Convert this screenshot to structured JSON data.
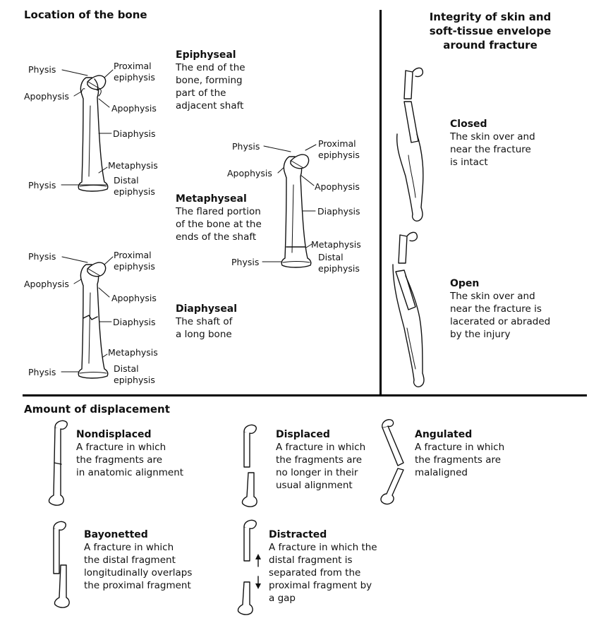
{
  "location": {
    "heading": "Location of the bone",
    "labels": {
      "physis": "Physis",
      "proximal": "Proximal",
      "epiphysis": "epiphysis",
      "apophysis": "Apophysis",
      "diaphysis": "Diaphysis",
      "metaphysis": "Metaphysis",
      "distal": "Distal"
    },
    "epiphyseal": {
      "title": "Epiphyseal",
      "lines": [
        "The end of the",
        "bone, forming",
        "part of the",
        "adjacent shaft"
      ]
    },
    "metaphyseal": {
      "title": "Metaphyseal",
      "lines": [
        "The flared portion",
        "of the bone at the",
        "ends of the shaft"
      ]
    },
    "diaphyseal": {
      "title": "Diaphyseal",
      "lines": [
        "The shaft of",
        "a long bone"
      ]
    }
  },
  "integrity": {
    "heading_lines": [
      "Integrity of skin and",
      "soft-tissue envelope",
      "around fracture"
    ],
    "closed": {
      "title": "Closed",
      "lines": [
        "The skin over and",
        "near the fracture",
        "is intact"
      ]
    },
    "open": {
      "title": "Open",
      "lines": [
        "The skin over and",
        "near the fracture is",
        "lacerated or abraded",
        "by the injury"
      ]
    }
  },
  "displacement": {
    "heading": "Amount of displacement",
    "nondisplaced": {
      "title": "Nondisplaced",
      "lines": [
        "A fracture in which",
        "the fragments are",
        "in anatomic alignment"
      ]
    },
    "displaced": {
      "title": "Displaced",
      "lines": [
        "A fracture in which",
        "the fragments are",
        "no longer in their",
        "usual alignment"
      ]
    },
    "angulated": {
      "title": "Angulated",
      "lines": [
        "A fracture in which",
        "the fragments are",
        "malaligned"
      ]
    },
    "bayonetted": {
      "title": "Bayonetted",
      "lines": [
        "A fracture in which",
        "the distal fragment",
        "longitudinally overlaps",
        "the proximal fragment"
      ]
    },
    "distracted": {
      "title": "Distracted",
      "lines": [
        "A fracture in which the",
        "distal fragment is",
        "separated from the",
        "proximal fragment by",
        "a gap"
      ]
    }
  }
}
